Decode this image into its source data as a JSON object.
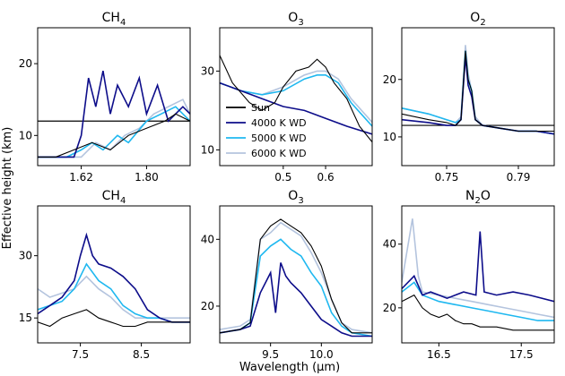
{
  "figure": {
    "xlabel": "Wavelength (μm)",
    "ylabel": "Effective height (km)"
  },
  "legend": [
    {
      "name": "Sun",
      "color": "#000000"
    },
    {
      "name": "4000 K WD",
      "color": "#0d0d8a"
    },
    {
      "name": "5000 K WD",
      "color": "#1fb8f0"
    },
    {
      "name": "6000 K WD",
      "color": "#b4c4de"
    }
  ],
  "chart_data": [
    {
      "type": "line",
      "title": "CH4",
      "title_main": "CH",
      "title_sub": "4",
      "xlim": [
        1.5,
        1.92
      ],
      "ylim": [
        5.8,
        25
      ],
      "xticks": [
        1.62,
        1.8
      ],
      "xtick_labels": [
        "1.62",
        "1.80"
      ],
      "yticks": [
        10,
        20
      ],
      "ytick_labels": [
        "10",
        "20"
      ],
      "hline": 12,
      "series": [
        {
          "name": "Sun",
          "x": [
            1.5,
            1.55,
            1.6,
            1.65,
            1.7,
            1.75,
            1.8,
            1.85,
            1.88,
            1.92
          ],
          "y": [
            7,
            7,
            8,
            9,
            8,
            10,
            11,
            12,
            13,
            12
          ]
        },
        {
          "name": "4000 K WD",
          "x": [
            1.5,
            1.55,
            1.6,
            1.62,
            1.64,
            1.66,
            1.68,
            1.7,
            1.72,
            1.75,
            1.78,
            1.8,
            1.83,
            1.86,
            1.9,
            1.92
          ],
          "y": [
            7,
            7,
            7,
            10,
            18,
            14,
            19,
            13,
            17,
            14,
            18,
            13,
            17,
            12,
            14,
            13
          ]
        },
        {
          "name": "5000 K WD",
          "x": [
            1.5,
            1.58,
            1.62,
            1.65,
            1.68,
            1.72,
            1.75,
            1.8,
            1.84,
            1.88,
            1.92
          ],
          "y": [
            7,
            7,
            8,
            9,
            8,
            10,
            9,
            12,
            13,
            14,
            12
          ]
        },
        {
          "name": "6000 K WD",
          "x": [
            1.5,
            1.58,
            1.62,
            1.66,
            1.7,
            1.74,
            1.78,
            1.82,
            1.86,
            1.9,
            1.92
          ],
          "y": [
            7,
            7,
            7,
            9,
            8,
            10,
            11,
            13,
            14,
            15,
            13
          ]
        }
      ]
    },
    {
      "type": "line",
      "title": "O3",
      "title_main": "O",
      "title_sub": "3",
      "xlim": [
        0.35,
        0.71
      ],
      "ylim": [
        6,
        41
      ],
      "xticks": [
        0.5,
        0.6
      ],
      "xtick_labels": [
        "0.5",
        "0.6"
      ],
      "yticks": [
        10,
        30
      ],
      "ytick_labels": [
        "10",
        "30"
      ],
      "series": [
        {
          "name": "Sun",
          "x": [
            0.35,
            0.38,
            0.42,
            0.45,
            0.48,
            0.5,
            0.53,
            0.56,
            0.58,
            0.6,
            0.62,
            0.65,
            0.68,
            0.71
          ],
          "y": [
            34,
            27,
            22,
            20,
            22,
            26,
            30,
            31,
            33,
            31,
            27,
            23,
            16,
            12
          ]
        },
        {
          "name": "4000 K WD",
          "x": [
            0.35,
            0.4,
            0.45,
            0.5,
            0.55,
            0.6,
            0.65,
            0.71
          ],
          "y": [
            27,
            25,
            23,
            21,
            20,
            18,
            16,
            14
          ]
        },
        {
          "name": "5000 K WD",
          "x": [
            0.35,
            0.4,
            0.45,
            0.5,
            0.55,
            0.58,
            0.6,
            0.63,
            0.66,
            0.71
          ],
          "y": [
            27,
            25,
            24,
            25,
            28,
            29,
            29,
            27,
            22,
            16
          ]
        },
        {
          "name": "6000 K WD",
          "x": [
            0.35,
            0.4,
            0.45,
            0.5,
            0.55,
            0.58,
            0.6,
            0.63,
            0.66,
            0.71
          ],
          "y": [
            27,
            25,
            24,
            26,
            29,
            30,
            30,
            28,
            23,
            17
          ]
        }
      ]
    },
    {
      "type": "line",
      "title": "O2",
      "title_main": "O",
      "title_sub": "2",
      "xlim": [
        0.725,
        0.81
      ],
      "ylim": [
        5,
        29
      ],
      "xticks": [
        0.75,
        0.79
      ],
      "xtick_labels": [
        "0.75",
        "0.79"
      ],
      "yticks": [
        10,
        20
      ],
      "ytick_labels": [
        "10",
        "20"
      ],
      "hline": 12,
      "series": [
        {
          "name": "Sun",
          "x": [
            0.725,
            0.74,
            0.75,
            0.755,
            0.758,
            0.7605,
            0.762,
            0.764,
            0.766,
            0.77,
            0.78,
            0.79,
            0.8,
            0.81
          ],
          "y": [
            14,
            13,
            12.5,
            12,
            13,
            25,
            20,
            18,
            13,
            12,
            11.5,
            11,
            11,
            11
          ]
        },
        {
          "name": "4000 K WD",
          "x": [
            0.725,
            0.74,
            0.75,
            0.755,
            0.758,
            0.7605,
            0.762,
            0.764,
            0.766,
            0.77,
            0.78,
            0.79,
            0.8,
            0.81
          ],
          "y": [
            13,
            12.5,
            12,
            12,
            13,
            24,
            19,
            17,
            13,
            12,
            11.5,
            11,
            11,
            10.5
          ]
        },
        {
          "name": "5000 K WD",
          "x": [
            0.725,
            0.74,
            0.75,
            0.755,
            0.758,
            0.7605,
            0.762,
            0.764,
            0.766,
            0.77,
            0.78,
            0.79,
            0.8,
            0.81
          ],
          "y": [
            15,
            14,
            13,
            12.5,
            13,
            25,
            20,
            18,
            13,
            12,
            11.5,
            11,
            11,
            10.5
          ]
        },
        {
          "name": "6000 K WD",
          "x": [
            0.725,
            0.74,
            0.75,
            0.755,
            0.758,
            0.7605,
            0.762,
            0.764,
            0.766,
            0.77,
            0.78,
            0.79,
            0.8,
            0.81
          ],
          "y": [
            15,
            14,
            13,
            12.5,
            13.5,
            26,
            21,
            18,
            13.5,
            12,
            11.5,
            11,
            11,
            10.5
          ]
        }
      ]
    },
    {
      "type": "line",
      "title": "CH4",
      "title_main": "CH",
      "title_sub": "4",
      "xlim": [
        6.8,
        9.3
      ],
      "ylim": [
        9,
        42
      ],
      "xticks": [
        7.5,
        8.5
      ],
      "xtick_labels": [
        "7.5",
        "8.5"
      ],
      "yticks": [
        15,
        30
      ],
      "ytick_labels": [
        "15",
        "30"
      ],
      "series": [
        {
          "name": "Sun",
          "x": [
            6.8,
            7.0,
            7.2,
            7.4,
            7.6,
            7.8,
            8.0,
            8.2,
            8.4,
            8.6,
            8.8,
            9.0,
            9.3
          ],
          "y": [
            14,
            13,
            15,
            16,
            17,
            15,
            14,
            13,
            13,
            14,
            14,
            14,
            14
          ]
        },
        {
          "name": "4000 K WD",
          "x": [
            6.8,
            7.0,
            7.2,
            7.4,
            7.5,
            7.6,
            7.7,
            7.8,
            8.0,
            8.2,
            8.4,
            8.6,
            8.8,
            9.0,
            9.3
          ],
          "y": [
            16,
            18,
            20,
            24,
            30,
            35,
            30,
            28,
            27,
            25,
            22,
            17,
            15,
            14,
            14
          ]
        },
        {
          "name": "5000 K WD",
          "x": [
            6.8,
            7.0,
            7.2,
            7.4,
            7.6,
            7.8,
            8.0,
            8.2,
            8.4,
            8.6,
            8.8,
            9.0,
            9.3
          ],
          "y": [
            17,
            18,
            19,
            22,
            28,
            24,
            22,
            18,
            16,
            15,
            15,
            14,
            14
          ]
        },
        {
          "name": "6000 K WD",
          "x": [
            6.8,
            7.0,
            7.2,
            7.4,
            7.6,
            7.8,
            8.0,
            8.2,
            8.4,
            8.6,
            8.8,
            9.0,
            9.3
          ],
          "y": [
            22,
            20,
            21,
            22,
            25,
            22,
            20,
            17,
            15,
            15,
            15,
            15,
            15
          ]
        }
      ]
    },
    {
      "type": "line",
      "title": "O3",
      "title_main": "O",
      "title_sub": "3",
      "xlim": [
        9.0,
        10.5
      ],
      "ylim": [
        9,
        50
      ],
      "xticks": [
        9.5,
        10.0
      ],
      "xtick_labels": [
        "9.5",
        "10.0"
      ],
      "yticks": [
        20,
        40
      ],
      "ytick_labels": [
        "20",
        "40"
      ],
      "series": [
        {
          "name": "Sun",
          "x": [
            9.0,
            9.2,
            9.3,
            9.4,
            9.5,
            9.6,
            9.7,
            9.8,
            9.9,
            10.0,
            10.1,
            10.2,
            10.3,
            10.5
          ],
          "y": [
            12,
            13,
            15,
            40,
            44,
            46,
            44,
            42,
            38,
            32,
            22,
            15,
            12,
            12
          ]
        },
        {
          "name": "4000 K WD",
          "x": [
            9.0,
            9.2,
            9.3,
            9.4,
            9.5,
            9.55,
            9.6,
            9.65,
            9.7,
            9.8,
            9.9,
            10.0,
            10.1,
            10.2,
            10.3,
            10.5
          ],
          "y": [
            12,
            13,
            14,
            24,
            30,
            18,
            33,
            29,
            27,
            24,
            20,
            16,
            14,
            12,
            11,
            11
          ]
        },
        {
          "name": "5000 K WD",
          "x": [
            9.0,
            9.2,
            9.3,
            9.4,
            9.5,
            9.6,
            9.7,
            9.8,
            9.9,
            10.0,
            10.1,
            10.2,
            10.3,
            10.5
          ],
          "y": [
            12,
            13,
            15,
            35,
            38,
            40,
            37,
            35,
            30,
            26,
            18,
            14,
            12,
            11
          ]
        },
        {
          "name": "6000 K WD",
          "x": [
            9.0,
            9.2,
            9.3,
            9.4,
            9.5,
            9.6,
            9.7,
            9.8,
            9.9,
            10.0,
            10.1,
            10.2,
            10.3,
            10.5
          ],
          "y": [
            13,
            14,
            16,
            40,
            42,
            45,
            43,
            41,
            36,
            30,
            22,
            15,
            13,
            12
          ]
        }
      ]
    },
    {
      "type": "line",
      "title": "N2O",
      "title_main": "N",
      "title_sub": "2",
      "title_tail": "O",
      "xlim": [
        16.05,
        17.9
      ],
      "ylim": [
        9,
        52
      ],
      "xticks": [
        16.5,
        17.5
      ],
      "xtick_labels": [
        "16.5",
        "17.5"
      ],
      "yticks": [
        20,
        40
      ],
      "ytick_labels": [
        "20",
        "40"
      ],
      "series": [
        {
          "name": "Sun",
          "x": [
            16.05,
            16.2,
            16.3,
            16.4,
            16.5,
            16.6,
            16.7,
            16.8,
            16.9,
            17.0,
            17.2,
            17.4,
            17.6,
            17.9
          ],
          "y": [
            22,
            24,
            20,
            18,
            17,
            18,
            16,
            15,
            15,
            14,
            14,
            13,
            13,
            13
          ]
        },
        {
          "name": "4000 K WD",
          "x": [
            16.05,
            16.2,
            16.3,
            16.4,
            16.5,
            16.6,
            16.8,
            16.95,
            17.0,
            17.05,
            17.2,
            17.4,
            17.6,
            17.9
          ],
          "y": [
            26,
            30,
            24,
            25,
            24,
            23,
            25,
            24,
            44,
            25,
            24,
            25,
            24,
            22
          ]
        },
        {
          "name": "5000 K WD",
          "x": [
            16.05,
            16.2,
            16.3,
            16.5,
            16.7,
            16.9,
            17.1,
            17.3,
            17.5,
            17.7,
            17.9
          ],
          "y": [
            25,
            28,
            24,
            22,
            21,
            20,
            19,
            18,
            17,
            16,
            16
          ]
        },
        {
          "name": "6000 K WD",
          "x": [
            16.05,
            16.18,
            16.25,
            16.3,
            16.5,
            16.7,
            16.9,
            17.1,
            17.3,
            17.5,
            17.7,
            17.9
          ],
          "y": [
            28,
            48,
            30,
            25,
            24,
            23,
            22,
            21,
            20,
            19,
            18,
            17
          ]
        }
      ]
    }
  ]
}
